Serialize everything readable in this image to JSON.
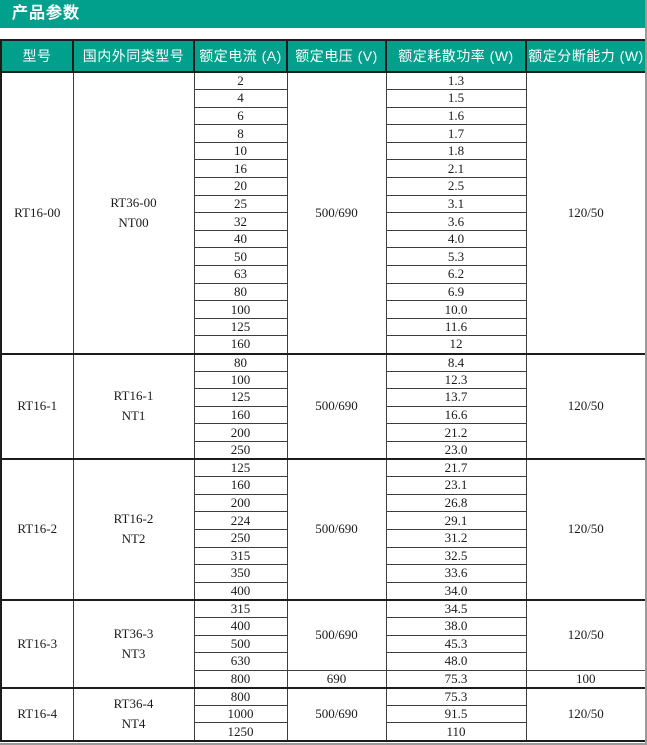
{
  "page": {
    "title": "产品参数"
  },
  "theme": {
    "accent_color": "#00a08c",
    "header_text_color": "#ffffff"
  },
  "table": {
    "headers": [
      "型号",
      "国内外同类型号",
      "额定电流 (A)",
      "额定电压 (V)",
      "额定耗散功率 (W)",
      "额定分断能力 (W)"
    ],
    "sections": [
      {
        "model": "RT16-00",
        "equivalent": [
          "RT36-00",
          "NT00"
        ],
        "groups": [
          {
            "voltage": "500/690",
            "breaking": "120/50",
            "rows": [
              {
                "current": "2",
                "power": "1.3"
              },
              {
                "current": "4",
                "power": "1.5"
              },
              {
                "current": "6",
                "power": "1.6"
              },
              {
                "current": "8",
                "power": "1.7"
              },
              {
                "current": "10",
                "power": "1.8"
              },
              {
                "current": "16",
                "power": "2.1"
              },
              {
                "current": "20",
                "power": "2.5"
              },
              {
                "current": "25",
                "power": "3.1"
              },
              {
                "current": "32",
                "power": "3.6"
              },
              {
                "current": "40",
                "power": "4.0"
              },
              {
                "current": "50",
                "power": "5.3"
              },
              {
                "current": "63",
                "power": "6.2"
              },
              {
                "current": "80",
                "power": "6.9"
              },
              {
                "current": "100",
                "power": "10.0"
              },
              {
                "current": "125",
                "power": "11.6"
              },
              {
                "current": "160",
                "power": "12"
              }
            ]
          }
        ]
      },
      {
        "model": "RT16-1",
        "equivalent": [
          "RT16-1",
          "NT1"
        ],
        "groups": [
          {
            "voltage": "500/690",
            "breaking": "120/50",
            "rows": [
              {
                "current": "80",
                "power": "8.4"
              },
              {
                "current": "100",
                "power": "12.3"
              },
              {
                "current": "125",
                "power": "13.7"
              },
              {
                "current": "160",
                "power": "16.6"
              },
              {
                "current": "200",
                "power": "21.2"
              },
              {
                "current": "250",
                "power": "23.0"
              }
            ]
          }
        ]
      },
      {
        "model": "RT16-2",
        "equivalent": [
          "RT16-2",
          "NT2"
        ],
        "groups": [
          {
            "voltage": "500/690",
            "breaking": "120/50",
            "rows": [
              {
                "current": "125",
                "power": "21.7"
              },
              {
                "current": "160",
                "power": "23.1"
              },
              {
                "current": "200",
                "power": "26.8"
              },
              {
                "current": "224",
                "power": "29.1"
              },
              {
                "current": "250",
                "power": "31.2"
              },
              {
                "current": "315",
                "power": "32.5"
              },
              {
                "current": "350",
                "power": "33.6"
              },
              {
                "current": "400",
                "power": "34.0"
              }
            ]
          }
        ]
      },
      {
        "model": "RT16-3",
        "equivalent": [
          "RT36-3",
          "NT3"
        ],
        "groups": [
          {
            "voltage": "500/690",
            "breaking": "120/50",
            "rows": [
              {
                "current": "315",
                "power": "34.5"
              },
              {
                "current": "400",
                "power": "38.0"
              },
              {
                "current": "500",
                "power": "45.3"
              },
              {
                "current": "630",
                "power": "48.0"
              }
            ]
          },
          {
            "voltage": "690",
            "breaking": "100",
            "rows": [
              {
                "current": "800",
                "power": "75.3"
              }
            ]
          }
        ]
      },
      {
        "model": "RT16-4",
        "equivalent": [
          "RT36-4",
          "NT4"
        ],
        "groups": [
          {
            "voltage": "500/690",
            "breaking": "120/50",
            "rows": [
              {
                "current": "800",
                "power": "75.3"
              },
              {
                "current": "1000",
                "power": "91.5"
              },
              {
                "current": "1250",
                "power": "110"
              }
            ]
          }
        ]
      }
    ]
  }
}
